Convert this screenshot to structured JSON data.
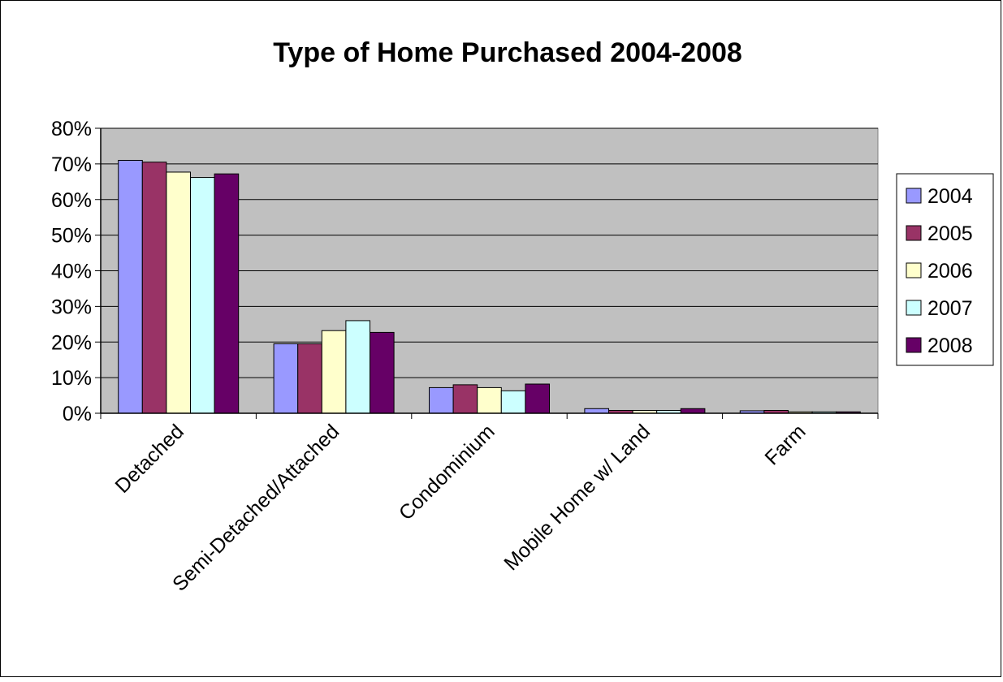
{
  "chart_data": {
    "type": "bar",
    "title": "Type of Home Purchased 2004-2008",
    "xlabel": "",
    "ylabel": "",
    "categories": [
      "Detached",
      "Semi-Detached/Attached",
      "Condominium",
      "Mobile Home w/ Land",
      "Farm"
    ],
    "series": [
      {
        "name": "2004",
        "color": "#9999ff",
        "values": [
          0.71,
          0.195,
          0.072,
          0.013,
          0.007
        ]
      },
      {
        "name": "2005",
        "color": "#993366",
        "values": [
          0.705,
          0.195,
          0.08,
          0.008,
          0.008
        ]
      },
      {
        "name": "2006",
        "color": "#ffffcc",
        "values": [
          0.677,
          0.232,
          0.072,
          0.008,
          0.004
        ]
      },
      {
        "name": "2007",
        "color": "#ccffff",
        "values": [
          0.662,
          0.26,
          0.063,
          0.008,
          0.004
        ]
      },
      {
        "name": "2008",
        "color": "#660066",
        "values": [
          0.672,
          0.227,
          0.082,
          0.013,
          0.004
        ]
      }
    ],
    "ylim": [
      0,
      0.8
    ],
    "y_ticks": [
      "0%",
      "10%",
      "20%",
      "30%",
      "40%",
      "50%",
      "60%",
      "70%",
      "80%"
    ],
    "grid": true,
    "plot_background": "#c0c0c0",
    "legend_position": "right"
  }
}
